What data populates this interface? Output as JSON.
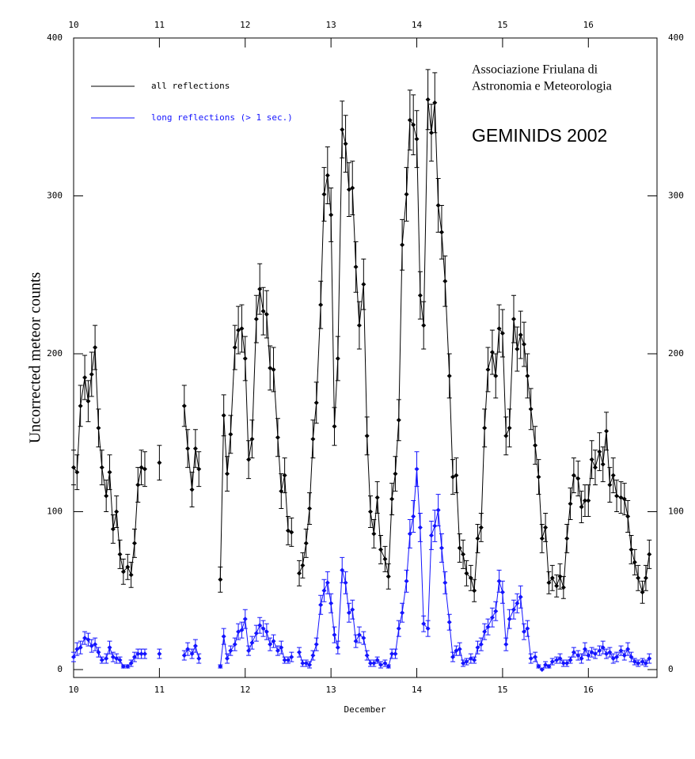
{
  "chart_data": {
    "type": "line",
    "title": "GEMINIDS 2002",
    "annotation": [
      "Associazione Friulana di",
      "Astronomia e Meteorologia"
    ],
    "xlabel": "December",
    "ylabel": "Uncorrected meteor counts",
    "xlim": [
      10,
      16.8
    ],
    "ylim": [
      -5,
      400
    ],
    "xticks": [
      10,
      11,
      12,
      13,
      14,
      15,
      16
    ],
    "yticks": [
      0,
      100,
      200,
      300,
      400
    ],
    "grid": false,
    "legend": "upper left",
    "x": [
      10,
      10.04,
      10.08,
      10.13,
      10.17,
      10.21,
      10.25,
      10.29,
      10.33,
      10.38,
      10.42,
      10.46,
      10.5,
      10.54,
      10.58,
      10.63,
      10.67,
      10.71,
      10.75,
      10.79,
      10.83,
      10.88,
      10.92,
      10.96,
      11,
      11.04,
      11.08,
      11.13,
      11.17,
      11.21,
      11.25,
      11.29,
      11.33,
      11.38,
      11.42,
      11.46,
      11.5,
      11.54,
      11.58,
      11.63,
      11.67,
      11.71,
      11.75,
      11.79,
      11.83,
      11.88,
      11.92,
      11.96,
      12,
      12.04,
      12.08,
      12.13,
      12.17,
      12.21,
      12.25,
      12.29,
      12.33,
      12.38,
      12.42,
      12.46,
      12.5,
      12.54,
      12.58,
      12.63,
      12.67,
      12.71,
      12.75,
      12.79,
      12.83,
      12.88,
      12.92,
      12.96,
      13,
      13.04,
      13.08,
      13.13,
      13.17,
      13.21,
      13.25,
      13.29,
      13.33,
      13.38,
      13.42,
      13.46,
      13.5,
      13.54,
      13.58,
      13.63,
      13.67,
      13.71,
      13.75,
      13.79,
      13.83,
      13.88,
      13.92,
      13.96,
      14,
      14.04,
      14.08,
      14.13,
      14.17,
      14.21,
      14.25,
      14.29,
      14.33,
      14.38,
      14.42,
      14.46,
      14.5,
      14.54,
      14.58,
      14.63,
      14.67,
      14.71,
      14.75,
      14.79,
      14.83,
      14.88,
      14.92,
      14.96,
      15,
      15.04,
      15.08,
      15.13,
      15.17,
      15.21,
      15.25,
      15.29,
      15.33,
      15.38,
      15.42,
      15.46,
      15.5,
      15.54,
      15.58,
      15.63,
      15.67,
      15.71,
      15.75,
      15.79,
      15.83,
      15.88,
      15.92,
      15.96,
      16,
      16.04,
      16.08,
      16.13,
      16.17,
      16.21,
      16.25,
      16.29,
      16.33,
      16.38,
      16.42,
      16.46,
      16.5,
      16.54,
      16.58,
      16.63,
      16.67,
      16.71
    ],
    "series": [
      {
        "name": "all reflections",
        "color": "#000000",
        "values": [
          128,
          125,
          167,
          185,
          170,
          187,
          204,
          153,
          128,
          110,
          125,
          89,
          100,
          73,
          62,
          65,
          60,
          80,
          117,
          128,
          127,
          null,
          null,
          null,
          131,
          null,
          null,
          null,
          null,
          null,
          null,
          167,
          140,
          114,
          140,
          127,
          null,
          null,
          null,
          null,
          null,
          57,
          161,
          124,
          149,
          204,
          215,
          216,
          197,
          133,
          146,
          222,
          241,
          227,
          225,
          191,
          190,
          147,
          113,
          123,
          88,
          87,
          null,
          61,
          66,
          80,
          102,
          146,
          169,
          231,
          301,
          313,
          288,
          154,
          197,
          342,
          333,
          304,
          305,
          255,
          218,
          244,
          148,
          100,
          86,
          109,
          76,
          70,
          59,
          108,
          124,
          158,
          269,
          301,
          348,
          345,
          336,
          237,
          218,
          361,
          340,
          359,
          294,
          277,
          246,
          186,
          122,
          123,
          77,
          73,
          61,
          58,
          50,
          83,
          90,
          153,
          190,
          201,
          186,
          216,
          213,
          148,
          153,
          222,
          203,
          212,
          206,
          186,
          165,
          142,
          122,
          83,
          90,
          55,
          58,
          53,
          59,
          52,
          83,
          105,
          123,
          121,
          103,
          107,
          107,
          133,
          128,
          138,
          130,
          151,
          117,
          123,
          110,
          109,
          108,
          97,
          76,
          68,
          58,
          49,
          58,
          73
        ],
        "errors": [
          11,
          11,
          13,
          14,
          13,
          14,
          14,
          12,
          11,
          10,
          11,
          9,
          10,
          9,
          8,
          8,
          8,
          9,
          11,
          11,
          11,
          null,
          null,
          null,
          11,
          null,
          null,
          null,
          null,
          null,
          null,
          13,
          12,
          11,
          12,
          11,
          null,
          null,
          null,
          null,
          null,
          8,
          13,
          11,
          12,
          14,
          15,
          15,
          14,
          12,
          12,
          15,
          16,
          15,
          15,
          14,
          14,
          12,
          11,
          11,
          9,
          9,
          null,
          8,
          8,
          9,
          10,
          12,
          13,
          15,
          17,
          18,
          17,
          12,
          14,
          18,
          18,
          17,
          17,
          16,
          15,
          16,
          12,
          10,
          9,
          10,
          9,
          8,
          8,
          10,
          11,
          13,
          16,
          17,
          19,
          19,
          18,
          15,
          15,
          19,
          18,
          19,
          17,
          17,
          16,
          14,
          11,
          11,
          9,
          9,
          8,
          8,
          7,
          9,
          9,
          12,
          14,
          14,
          14,
          15,
          15,
          12,
          12,
          15,
          14,
          15,
          14,
          14,
          13,
          12,
          11,
          9,
          9,
          7,
          8,
          7,
          8,
          7,
          9,
          10,
          11,
          11,
          10,
          10,
          10,
          12,
          11,
          12,
          11,
          12,
          11,
          11,
          10,
          10,
          10,
          10,
          9,
          8,
          8,
          7,
          8,
          9
        ]
      },
      {
        "name": "long reflections (> 1 sec.)",
        "color": "#1414ff",
        "values": [
          8,
          13,
          14,
          20,
          19,
          15,
          16,
          11,
          6,
          7,
          14,
          8,
          7,
          6,
          2,
          2,
          4,
          8,
          10,
          10,
          10,
          null,
          null,
          null,
          10,
          null,
          null,
          null,
          null,
          null,
          null,
          9,
          13,
          10,
          15,
          7,
          null,
          null,
          null,
          null,
          null,
          2,
          21,
          7,
          12,
          16,
          24,
          25,
          32,
          12,
          17,
          23,
          28,
          26,
          24,
          16,
          18,
          12,
          14,
          6,
          6,
          8,
          null,
          11,
          4,
          4,
          3,
          9,
          16,
          41,
          50,
          55,
          42,
          22,
          14,
          63,
          55,
          36,
          38,
          18,
          22,
          20,
          9,
          4,
          4,
          6,
          3,
          4,
          2,
          10,
          10,
          26,
          36,
          56,
          86,
          97,
          127,
          90,
          29,
          26,
          85,
          91,
          101,
          77,
          55,
          30,
          8,
          12,
          13,
          4,
          5,
          7,
          6,
          14,
          16,
          24,
          27,
          33,
          37,
          56,
          49,
          16,
          32,
          38,
          42,
          46,
          24,
          26,
          7,
          8,
          2,
          0,
          3,
          2,
          5,
          6,
          7,
          4,
          4,
          6,
          11,
          9,
          7,
          13,
          9,
          11,
          10,
          12,
          14,
          10,
          11,
          7,
          8,
          12,
          9,
          13,
          8,
          5,
          4,
          5,
          4,
          7
        ],
        "errors": [
          3,
          4,
          4,
          4,
          4,
          4,
          4,
          3,
          2,
          3,
          4,
          3,
          3,
          2,
          1,
          1,
          2,
          3,
          3,
          3,
          3,
          null,
          null,
          null,
          3,
          null,
          null,
          null,
          null,
          null,
          null,
          3,
          4,
          3,
          4,
          3,
          null,
          null,
          null,
          null,
          null,
          1,
          5,
          3,
          3,
          4,
          5,
          5,
          6,
          3,
          4,
          5,
          5,
          5,
          5,
          4,
          4,
          3,
          4,
          2,
          2,
          3,
          null,
          3,
          2,
          2,
          2,
          3,
          4,
          6,
          7,
          7,
          6,
          5,
          4,
          8,
          7,
          6,
          6,
          4,
          5,
          4,
          3,
          2,
          2,
          2,
          2,
          2,
          1,
          3,
          3,
          5,
          6,
          7,
          9,
          10,
          11,
          9,
          5,
          5,
          9,
          10,
          10,
          9,
          7,
          5,
          3,
          3,
          4,
          2,
          2,
          3,
          2,
          4,
          4,
          5,
          5,
          6,
          6,
          7,
          7,
          4,
          6,
          6,
          6,
          7,
          5,
          5,
          3,
          3,
          1,
          0,
          2,
          1,
          2,
          2,
          3,
          2,
          2,
          2,
          3,
          3,
          3,
          4,
          3,
          3,
          3,
          3,
          4,
          3,
          3,
          3,
          3,
          3,
          3,
          4,
          3,
          2,
          2,
          2,
          2,
          3
        ]
      }
    ]
  }
}
